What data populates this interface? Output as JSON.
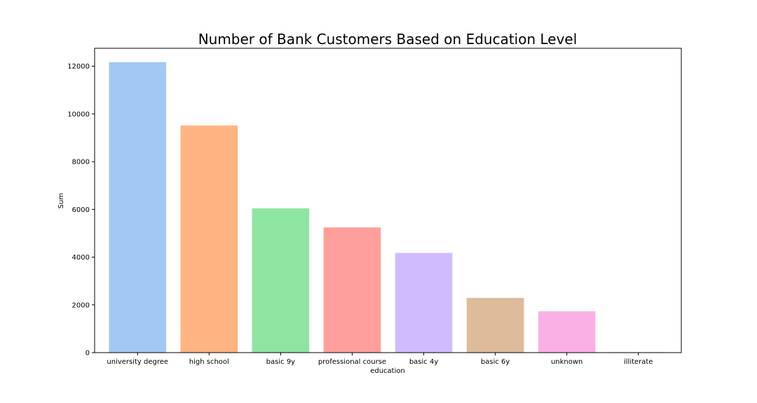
{
  "chart_data": {
    "type": "bar",
    "title": "Number of Bank Customers Based on Education Level",
    "xlabel": "education",
    "ylabel": "Sum",
    "categories": [
      "university degree",
      "high school",
      "basic 9y",
      "professional course",
      "basic 4y",
      "basic 6y",
      "unknown",
      "illiterate"
    ],
    "values": [
      12168,
      9515,
      6045,
      5243,
      4176,
      2292,
      1731,
      18
    ],
    "colors": [
      "#a1c9f4",
      "#ffb482",
      "#8de5a1",
      "#ff9f9b",
      "#d0bbff",
      "#debb9b",
      "#fab0e4",
      "#cfcfcf"
    ],
    "ylim": [
      0,
      12750
    ],
    "yticks": [
      0,
      2000,
      4000,
      6000,
      8000,
      10000,
      12000
    ],
    "ytick_labels": [
      "0",
      "2000",
      "4000",
      "6000",
      "8000",
      "10000",
      "12000"
    ],
    "grid": false,
    "legend": "none"
  }
}
